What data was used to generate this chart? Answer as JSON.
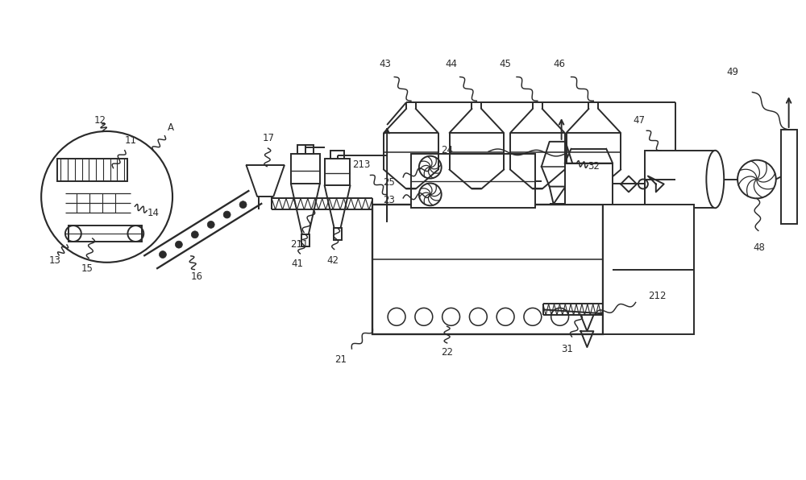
{
  "bg": "#ffffff",
  "lc": "#2a2a2a",
  "lw": 1.4,
  "fw": 10.0,
  "fh": 5.96
}
